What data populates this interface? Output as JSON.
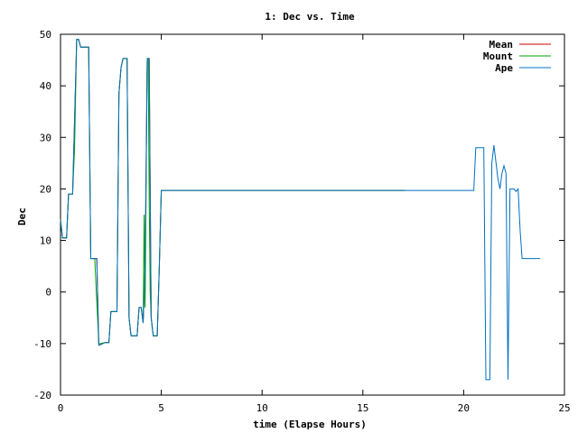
{
  "chart_data": {
    "type": "line",
    "title": "1: Dec vs. Time",
    "xlabel": "time (Elapse Hours)",
    "ylabel": "Dec",
    "xlim": [
      0,
      25
    ],
    "ylim": [
      -20,
      50
    ],
    "xticks": [
      0,
      5,
      10,
      15,
      20,
      25
    ],
    "yticks": [
      -20,
      -10,
      0,
      10,
      20,
      30,
      40,
      50
    ],
    "grid": false,
    "legend_position": "top-right",
    "series": [
      {
        "name": "Mean",
        "color": "#cc0000",
        "points": [
          [
            0,
            14
          ],
          [
            0.1,
            10.5
          ],
          [
            0.3,
            10.5
          ],
          [
            0.4,
            19
          ],
          [
            0.6,
            19
          ],
          [
            0.8,
            49
          ],
          [
            0.9,
            49
          ],
          [
            1.0,
            47.5
          ],
          [
            1.4,
            47.5
          ],
          [
            1.5,
            6.5
          ],
          [
            1.8,
            6.5
          ],
          [
            1.9,
            -10.3
          ],
          [
            2.0,
            -10.2
          ],
          [
            2.2,
            -9.8
          ],
          [
            2.4,
            -9.8
          ],
          [
            2.5,
            -3.8
          ],
          [
            2.8,
            -3.8
          ],
          [
            2.9,
            38.5
          ],
          [
            3.0,
            43.5
          ],
          [
            3.1,
            45.3
          ],
          [
            3.3,
            45.3
          ],
          [
            3.4,
            -5
          ],
          [
            3.5,
            -8.5
          ],
          [
            3.8,
            -8.5
          ],
          [
            3.9,
            -3
          ],
          [
            4.0,
            -3
          ],
          [
            4.1,
            -6
          ],
          [
            4.2,
            5
          ],
          [
            4.3,
            45.3
          ],
          [
            4.4,
            45.3
          ],
          [
            4.5,
            -5
          ],
          [
            4.6,
            -8.5
          ],
          [
            4.8,
            -8.5
          ],
          [
            4.9,
            5
          ],
          [
            5.0,
            19.7
          ],
          [
            17.1,
            19.7
          ]
        ]
      },
      {
        "name": "Mount",
        "color": "#00a000",
        "points": [
          [
            0,
            14
          ],
          [
            0.1,
            10.5
          ],
          [
            0.3,
            10.5
          ],
          [
            0.4,
            19
          ],
          [
            0.6,
            19
          ],
          [
            0.7,
            28
          ],
          [
            0.8,
            49
          ],
          [
            0.9,
            49
          ],
          [
            1.0,
            47.5
          ],
          [
            1.4,
            47.5
          ],
          [
            1.5,
            6.5
          ],
          [
            1.7,
            6.5
          ],
          [
            1.75,
            2
          ],
          [
            1.85,
            -6
          ],
          [
            1.9,
            -10
          ],
          [
            2.0,
            -10
          ],
          [
            2.2,
            -9.8
          ],
          [
            2.4,
            -9.8
          ],
          [
            2.5,
            -3.8
          ],
          [
            2.8,
            -3.8
          ],
          [
            2.9,
            38.5
          ],
          [
            3.0,
            43.5
          ],
          [
            3.1,
            45.3
          ],
          [
            3.3,
            45.3
          ],
          [
            3.4,
            -5
          ],
          [
            3.5,
            -8.5
          ],
          [
            3.8,
            -8.5
          ],
          [
            3.9,
            -3
          ],
          [
            4.0,
            -3
          ],
          [
            4.1,
            -6
          ],
          [
            4.15,
            15
          ],
          [
            4.2,
            -3
          ],
          [
            4.3,
            45.3
          ],
          [
            4.35,
            45.3
          ],
          [
            4.4,
            18
          ],
          [
            4.45,
            0
          ],
          [
            4.5,
            -5
          ],
          [
            4.6,
            -8.5
          ],
          [
            4.8,
            -8.5
          ],
          [
            4.9,
            5
          ],
          [
            5.0,
            19.7
          ],
          [
            17.1,
            19.7
          ]
        ]
      },
      {
        "name": "Ape",
        "color": "#0070c0",
        "points": [
          [
            0,
            14
          ],
          [
            0.1,
            10.5
          ],
          [
            0.3,
            10.5
          ],
          [
            0.4,
            19
          ],
          [
            0.6,
            19
          ],
          [
            0.8,
            49
          ],
          [
            0.9,
            49
          ],
          [
            1.0,
            47.5
          ],
          [
            1.4,
            47.5
          ],
          [
            1.5,
            6.5
          ],
          [
            1.8,
            6.5
          ],
          [
            1.9,
            -10.3
          ],
          [
            2.0,
            -10.2
          ],
          [
            2.2,
            -9.8
          ],
          [
            2.4,
            -9.8
          ],
          [
            2.5,
            -3.8
          ],
          [
            2.8,
            -3.8
          ],
          [
            2.9,
            38.5
          ],
          [
            3.0,
            43.5
          ],
          [
            3.1,
            45.3
          ],
          [
            3.3,
            45.3
          ],
          [
            3.4,
            -5
          ],
          [
            3.5,
            -8.5
          ],
          [
            3.8,
            -8.5
          ],
          [
            3.9,
            -3
          ],
          [
            4.0,
            -3
          ],
          [
            4.1,
            -6
          ],
          [
            4.2,
            5
          ],
          [
            4.3,
            45.3
          ],
          [
            4.4,
            45.3
          ],
          [
            4.5,
            -5
          ],
          [
            4.6,
            -8.5
          ],
          [
            4.8,
            -8.5
          ],
          [
            4.9,
            5
          ],
          [
            5.0,
            19.7
          ],
          [
            20.5,
            19.7
          ],
          [
            20.6,
            28
          ],
          [
            21.0,
            28
          ],
          [
            21.1,
            -17
          ],
          [
            21.3,
            -17
          ],
          [
            21.4,
            25
          ],
          [
            21.5,
            28.5
          ],
          [
            21.7,
            22
          ],
          [
            21.8,
            20
          ],
          [
            21.9,
            23
          ],
          [
            22.0,
            24.5
          ],
          [
            22.1,
            23
          ],
          [
            22.2,
            -17
          ],
          [
            22.3,
            20
          ],
          [
            22.5,
            20
          ],
          [
            22.6,
            19.5
          ],
          [
            22.7,
            20
          ],
          [
            22.8,
            12
          ],
          [
            22.9,
            6.5
          ],
          [
            23.8,
            6.5
          ]
        ]
      }
    ]
  }
}
